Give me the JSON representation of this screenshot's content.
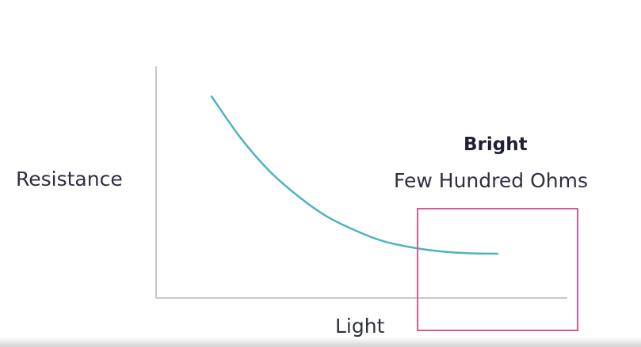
{
  "chart_data": {
    "type": "line",
    "xlabel": "Light",
    "ylabel": "Resistance",
    "grid": false,
    "legend": "none",
    "series": [
      {
        "color": "#4fb3bf",
        "x": [
          0.0,
          0.1,
          0.2,
          0.3,
          0.4,
          0.5,
          0.6,
          0.7,
          0.8,
          0.9,
          1.0
        ],
        "values": [
          1.0,
          0.74,
          0.53,
          0.37,
          0.24,
          0.15,
          0.08,
          0.04,
          0.015,
          0.003,
          0.0
        ]
      }
    ],
    "annotation": {
      "title": "Bright",
      "subtitle": "Few Hundred Ohms",
      "highlight_color": "#d65a91",
      "highlight_region": "bright end of the light axis, low resistance"
    },
    "colors": {
      "axis": "#c8c8c8",
      "curve": "#4fb3bf",
      "highlight": "#d65a91",
      "text": "#2f3040"
    }
  }
}
